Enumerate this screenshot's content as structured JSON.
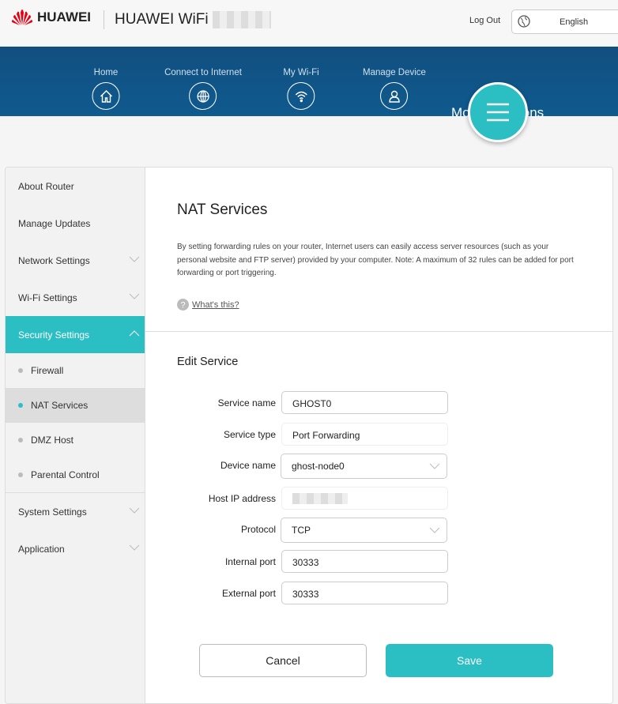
{
  "header": {
    "brand": "HUAWEI",
    "title": "HUAWEI WiFi",
    "logout": "Log Out",
    "language": "English"
  },
  "nav": [
    {
      "label": "Home",
      "icon": "home-icon"
    },
    {
      "label": "Connect to Internet",
      "icon": "globe-icon"
    },
    {
      "label": "My Wi-Fi",
      "icon": "wifi-icon"
    },
    {
      "label": "Manage Device",
      "icon": "user-icon"
    }
  ],
  "nav_active": "More Functions",
  "sidebar": {
    "items": [
      "About Router",
      "Manage Updates",
      "Network Settings",
      "Wi-Fi Settings",
      "Security Settings"
    ],
    "sub": [
      "Firewall",
      "NAT Services",
      "DMZ Host",
      "Parental Control"
    ],
    "items2": [
      "System Settings",
      "Application"
    ]
  },
  "page": {
    "title": "NAT Services",
    "description": "By setting forwarding rules on your router, Internet users can easily access server resources (such as your personal website and FTP server) provided by your computer. Note: A maximum of 32 rules can be added for port forwarding or port triggering.",
    "whats_this": "What's this?",
    "section": "Edit Service"
  },
  "form": {
    "service_name_label": "Service name",
    "service_name": "GHOST0",
    "service_type_label": "Service type",
    "service_type": "Port Forwarding",
    "device_name_label": "Device name",
    "device_name": "ghost-node0",
    "host_ip_label": "Host IP address",
    "protocol_label": "Protocol",
    "protocol": "TCP",
    "internal_port_label": "Internal port",
    "internal_port": "30333",
    "external_port_label": "External port",
    "external_port": "30333"
  },
  "buttons": {
    "cancel": "Cancel",
    "save": "Save"
  },
  "colors": {
    "accent": "#2bbfc4",
    "nav": "#124f80"
  }
}
